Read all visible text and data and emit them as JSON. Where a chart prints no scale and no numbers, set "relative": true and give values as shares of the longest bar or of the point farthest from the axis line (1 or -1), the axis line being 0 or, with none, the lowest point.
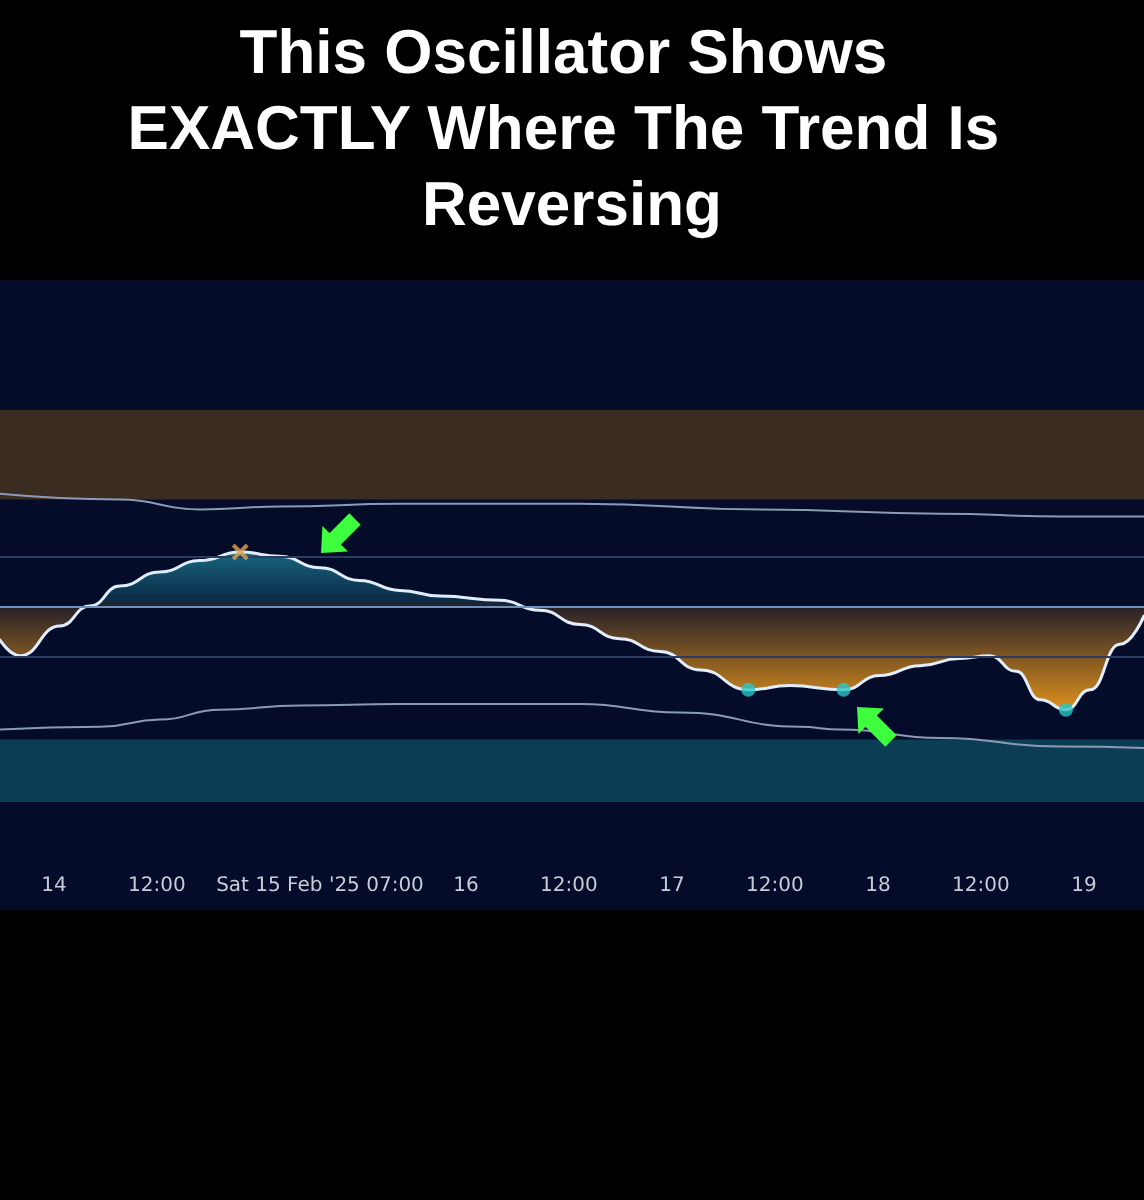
{
  "chart_data": {
    "type": "area",
    "title": "This Oscillator Shows EXACTLY Where The Trend Is Reversing",
    "relative": true,
    "grid": false,
    "xlim": [
      "2025-02-13T17:43",
      "2025-02-19T07:00"
    ],
    "xticks": [
      {
        "value": "2025-02-14",
        "label": "14"
      },
      {
        "value": "2025-02-14T12:00",
        "label": "12:00"
      },
      {
        "value": "2025-02-15T07:00",
        "label": "Sat 15 Feb '25 07:00"
      },
      {
        "value": "2025-02-16",
        "label": "16"
      },
      {
        "value": "2025-02-16T12:00",
        "label": "12:00"
      },
      {
        "value": "2025-02-17",
        "label": "17"
      },
      {
        "value": "2025-02-17T12:00",
        "label": "12:00"
      },
      {
        "value": "2025-02-18",
        "label": "18"
      },
      {
        "value": "2025-02-18T12:00",
        "label": "12:00"
      },
      {
        "value": "2025-02-19",
        "label": "19"
      }
    ],
    "series": [
      {
        "color": "#dfeefa",
        "colors": [
          "#f59e1b",
          "#f59e1b",
          "#f59e1b",
          "#f59e1b",
          "#2bb5c9",
          "#2bb5c9",
          "#2bb5c9",
          "#2bb5c9",
          "#2bb5c9",
          "#2bb5c9",
          "#2bb5c9",
          "#2bb5c9",
          "#2bb5c9",
          "#2bb5c9",
          "#f59e1b",
          "#f59e1b",
          "#f59e1b",
          "#f59e1b",
          "#f59e1b",
          "#f59e1b",
          "#f59e1b",
          "#f59e1b",
          "#f59e1b",
          "#f59e1b",
          "#f59e1b",
          "#f59e1b",
          "#f59e1b",
          "#f59e1b",
          "#f59e1b",
          "#f59e1b",
          "#f59e1b",
          "#f59e1b"
        ],
        "x": [
          "2025-02-13T17:43",
          "2025-02-13T20:02",
          "2025-02-14T00:42",
          "2025-02-14T04:11",
          "2025-02-14T07:41",
          "2025-02-14T12:21",
          "2025-02-14T17:00",
          "2025-02-14T21:42",
          "2025-02-15T02:18",
          "2025-02-15T07:00",
          "2025-02-15T11:36",
          "2025-02-15T16:18",
          "2025-02-15T21:00",
          "2025-02-16T04:00",
          "2025-02-16T08:36",
          "2025-02-16T13:18",
          "2025-02-16T17:54",
          "2025-02-16T22:36",
          "2025-02-17T03:18",
          "2025-02-17T08:54",
          "2025-02-17T13:42",
          "2025-02-17T20:00",
          "2025-02-18T00:12",
          "2025-02-18T04:54",
          "2025-02-18T09:30",
          "2025-02-18T13:00",
          "2025-02-18T16:06",
          "2025-02-18T18:54",
          "2025-02-18T21:54",
          "2025-02-19T00:42",
          "2025-02-19T04:12",
          "2025-02-19T07:00"
        ],
        "values": [
          -0.24,
          -0.35,
          -0.14,
          0,
          0.14,
          0.24,
          0.32,
          0.38,
          0.35,
          0.27,
          0.18,
          0.11,
          0.07,
          0.04,
          -0.03,
          -0.13,
          -0.23,
          -0.32,
          -0.45,
          -0.59,
          -0.56,
          -0.59,
          -0.49,
          -0.42,
          -0.37,
          -0.35,
          -0.46,
          -0.66,
          -0.73,
          -0.59,
          -0.27,
          -0.07
        ]
      },
      {
        "type": "line",
        "color": "#8d9ab5",
        "x": [
          "2025-02-13T17:43",
          "2025-02-14T07:41",
          "2025-02-14T17:00",
          "2025-02-15T02:18",
          "2025-02-15T16:18",
          "2025-02-16T13:18",
          "2025-02-17T10:18",
          "2025-02-18T07:18",
          "2025-02-18T21:12",
          "2025-02-19T07:00"
        ],
        "values": [
          0.79,
          0.75,
          0.68,
          0.7,
          0.72,
          0.72,
          0.68,
          0.65,
          0.63,
          0.63
        ]
      },
      {
        "type": "line",
        "color": "#8d9ab5",
        "x": [
          "2025-02-13T17:43",
          "2025-02-14T05:22",
          "2025-02-14T12:21",
          "2025-02-14T19:18",
          "2025-02-15T04:42",
          "2025-02-15T16:18",
          "2025-02-16T13:18",
          "2025-02-17T00:54",
          "2025-02-17T14:54",
          "2025-02-17T19:36",
          "2025-02-18T07:18",
          "2025-02-18T21:12",
          "2025-02-19T07:00"
        ],
        "values": [
          -0.87,
          -0.85,
          -0.8,
          -0.73,
          -0.7,
          -0.69,
          -0.69,
          -0.75,
          -0.85,
          -0.87,
          -0.93,
          -0.99,
          -1
        ]
      },
      {
        "type": "scatter",
        "marker": "cross",
        "color": "#e0a050",
        "x": [
          "2025-02-14T21:42"
        ],
        "values": [
          0.38
        ]
      },
      {
        "type": "scatter",
        "marker": "circle",
        "color": "#2bc4c4",
        "x": [
          "2025-02-17T08:54",
          "2025-02-17T20:00",
          "2025-02-18T21:54"
        ],
        "values": [
          -0.59,
          -0.59,
          -0.73
        ]
      }
    ],
    "bands": [
      {
        "axis": "y",
        "from": 0.75,
        "to": 1.38,
        "color": "#4a3520"
      },
      {
        "axis": "y",
        "from": -0.94,
        "to": -1.38,
        "color": "#0e4a60"
      }
    ],
    "ref_lines": [
      {
        "axis": "y",
        "value": 0.35,
        "color": "#2a3a60"
      },
      {
        "axis": "y",
        "value": 0,
        "color": "#6f8fb8"
      },
      {
        "axis": "y",
        "value": -0.35,
        "color": "#2a3a60"
      }
    ]
  }
}
